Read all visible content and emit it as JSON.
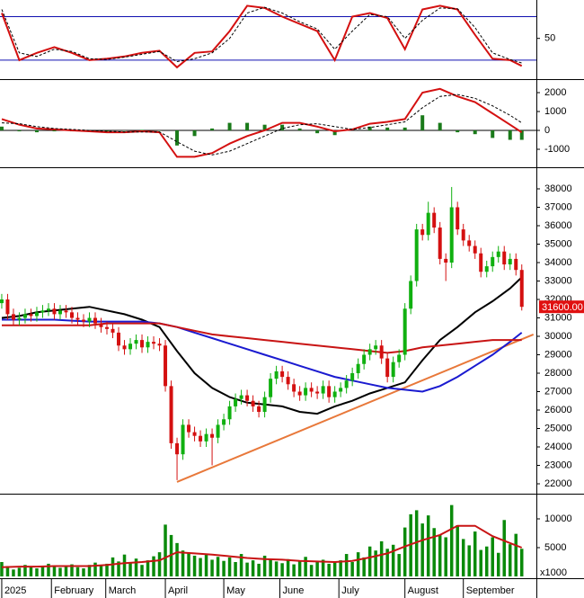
{
  "chart_data": [
    {
      "type": "line",
      "xlim": [
        -0.3,
        91.5
      ],
      "ylim": [
        -5,
        103
      ],
      "yticks": [
        50
      ],
      "levels": [
        80,
        20
      ],
      "levels_color": "#1010b0",
      "x": [
        0,
        3,
        6,
        9,
        12,
        15,
        18,
        21,
        24,
        27,
        30,
        33,
        36,
        39,
        42,
        45,
        48,
        51,
        54,
        57,
        60,
        63,
        66,
        69,
        72,
        75,
        78,
        81,
        84,
        87,
        89
      ],
      "series": [
        {
          "color": "#d41010",
          "values": [
            85,
            20,
            30,
            38,
            30,
            20,
            22,
            25,
            30,
            33,
            10,
            30,
            32,
            60,
            95,
            92,
            80,
            70,
            60,
            20,
            80,
            85,
            78,
            35,
            90,
            95,
            90,
            55,
            22,
            20,
            12
          ]
        },
        {
          "color": "#000000",
          "dashed": true,
          "values": [
            90,
            30,
            25,
            35,
            32,
            22,
            21,
            24,
            28,
            32,
            18,
            22,
            30,
            50,
            85,
            93,
            85,
            73,
            63,
            35,
            60,
            83,
            80,
            50,
            75,
            92,
            91,
            65,
            30,
            21,
            16
          ]
        }
      ]
    },
    {
      "type": "macd",
      "xlim": [
        -0.3,
        91.5
      ],
      "ylim": [
        -1905,
        2619
      ],
      "yticks": [
        2000,
        1000,
        0,
        -1000
      ],
      "x": [
        0,
        3,
        6,
        9,
        12,
        15,
        18,
        21,
        24,
        27,
        30,
        33,
        36,
        39,
        42,
        45,
        48,
        51,
        54,
        57,
        60,
        63,
        66,
        69,
        72,
        75,
        78,
        81,
        84,
        87,
        89
      ],
      "series": [
        {
          "color": "#d41010",
          "values": [
            600,
            300,
            100,
            50,
            0,
            -50,
            -100,
            -100,
            -50,
            -100,
            -1400,
            -1400,
            -1200,
            -700,
            -300,
            0,
            400,
            400,
            200,
            -50,
            50,
            350,
            450,
            600,
            2000,
            2200,
            1800,
            1500,
            900,
            300,
            -100
          ]
        },
        {
          "color": "#000000",
          "dashed": true,
          "values": [
            400,
            350,
            200,
            100,
            50,
            0,
            -50,
            -80,
            -80,
            -80,
            -600,
            -1100,
            -1300,
            -1100,
            -700,
            -300,
            100,
            300,
            350,
            200,
            50,
            150,
            300,
            450,
            1200,
            1800,
            1900,
            1700,
            1300,
            800,
            400
          ]
        }
      ],
      "histogram": {
        "color": "#1a7a1a",
        "values": [
          200,
          -50,
          -100,
          -50,
          -50,
          -50,
          -50,
          -20,
          30,
          -20,
          -800,
          -300,
          100,
          400,
          400,
          300,
          300,
          100,
          -150,
          -250,
          0,
          200,
          150,
          150,
          800,
          400,
          -100,
          -200,
          -400,
          -500,
          -500
        ]
      }
    },
    {
      "type": "candlestick",
      "xlim": [
        -0.3,
        91.5
      ],
      "ylim": [
        21512,
        39073
      ],
      "yticks": [
        22000,
        23000,
        24000,
        25000,
        26000,
        27000,
        28000,
        29000,
        30000,
        31000,
        32000,
        33000,
        34000,
        35000,
        36000,
        37000,
        38000
      ],
      "up_color": "#10b010",
      "down_color": "#d41010",
      "open": [
        31800,
        32000,
        31200,
        30900,
        31000,
        31200,
        31100,
        31300,
        31400,
        31500,
        31200,
        31400,
        31300,
        31000,
        30900,
        30800,
        31000,
        30700,
        30500,
        30400,
        30200,
        29500,
        29300,
        29600,
        29800,
        29400,
        29700,
        29600,
        29500,
        27300,
        24200,
        23600,
        25200,
        24800,
        24600,
        24300,
        24700,
        24500,
        25200,
        25500,
        26200,
        26600,
        26800,
        26500,
        26200,
        25900,
        26700,
        27700,
        28100,
        27800,
        27400,
        27000,
        26800,
        27200,
        27000,
        26900,
        27300,
        26700,
        27000,
        27200,
        27600,
        28000,
        28500,
        29000,
        29300,
        29500,
        28800,
        27800,
        28600,
        29000,
        31500,
        33000,
        35800,
        35500,
        36700,
        35900,
        34200,
        34000,
        37000,
        35800,
        35200,
        34900,
        34500,
        33500,
        33800,
        34300,
        34600,
        33900,
        34200,
        33600
      ],
      "high": [
        32300,
        32300,
        31500,
        31300,
        31500,
        31500,
        31600,
        31700,
        31800,
        31800,
        31700,
        31700,
        31600,
        31300,
        31200,
        31300,
        31300,
        31000,
        30800,
        30700,
        30500,
        29800,
        29900,
        30100,
        30100,
        30000,
        30000,
        29900,
        29800,
        27600,
        24500,
        25500,
        25500,
        25100,
        24900,
        25000,
        25000,
        25500,
        25800,
        26500,
        26900,
        27100,
        27100,
        26800,
        26500,
        27000,
        28000,
        28400,
        28400,
        28100,
        27700,
        27300,
        27500,
        27500,
        27300,
        27600,
        27600,
        27300,
        27500,
        27900,
        28300,
        28800,
        29300,
        29600,
        29800,
        29800,
        29100,
        28900,
        29300,
        31800,
        33300,
        36100,
        36100,
        37300,
        37000,
        36200,
        34500,
        38100,
        37300,
        36100,
        35500,
        35200,
        34800,
        34100,
        34600,
        34900,
        34900,
        34500,
        34500,
        33900
      ],
      "low": [
        31500,
        30900,
        30600,
        30600,
        30700,
        30800,
        30800,
        31000,
        31100,
        30900,
        30900,
        31000,
        30700,
        30600,
        30500,
        30500,
        30400,
        30200,
        30100,
        29900,
        29200,
        29000,
        29000,
        29300,
        29100,
        29100,
        29300,
        29200,
        27000,
        23900,
        22200,
        23300,
        24500,
        24300,
        24000,
        24000,
        23000,
        24200,
        24900,
        25200,
        25900,
        26300,
        26200,
        25900,
        25600,
        25600,
        26400,
        27400,
        27500,
        27100,
        26700,
        26500,
        26500,
        26700,
        26600,
        26600,
        26400,
        26400,
        26700,
        26900,
        27300,
        27700,
        28200,
        28700,
        29000,
        28500,
        27500,
        27500,
        28300,
        28700,
        31200,
        32700,
        35200,
        35200,
        35600,
        33900,
        33000,
        33700,
        35500,
        34900,
        34600,
        34200,
        33200,
        33200,
        33500,
        34000,
        33600,
        33600,
        33300,
        31400
      ],
      "close": [
        32000,
        31200,
        30900,
        31000,
        31200,
        31100,
        31300,
        31400,
        31500,
        31200,
        31400,
        31300,
        31000,
        30900,
        30800,
        31000,
        30700,
        30500,
        30400,
        30200,
        29500,
        29300,
        29600,
        29800,
        29400,
        29700,
        29600,
        29500,
        27300,
        24200,
        23600,
        25200,
        24800,
        24600,
        24300,
        24700,
        24500,
        25200,
        25500,
        26200,
        26600,
        26800,
        26500,
        26200,
        25900,
        26700,
        27700,
        28100,
        27800,
        27400,
        27000,
        26800,
        27200,
        27000,
        26900,
        27300,
        26700,
        27000,
        27200,
        27600,
        28000,
        28500,
        29000,
        29300,
        29500,
        28800,
        27800,
        28600,
        29000,
        31500,
        33000,
        35800,
        35500,
        36700,
        35900,
        34200,
        34000,
        37000,
        35800,
        35200,
        34900,
        34500,
        33500,
        33800,
        34300,
        34600,
        33900,
        34200,
        33600,
        31600
      ],
      "last_price": {
        "value": 31600,
        "label": "31600.00"
      },
      "last_price_color": "#e01010",
      "lines": {
        "x": [
          0,
          3,
          6,
          9,
          12,
          15,
          18,
          21,
          24,
          27,
          30,
          33,
          36,
          39,
          42,
          45,
          48,
          51,
          54,
          57,
          60,
          63,
          66,
          69,
          72,
          75,
          78,
          81,
          84,
          87,
          89
        ],
        "series": [
          {
            "color": "#000000",
            "values": [
              31000,
              31100,
              31300,
              31400,
              31500,
              31600,
              31400,
              31200,
              30900,
              30500,
              29200,
              28000,
              27200,
              26700,
              26400,
              26300,
              26200,
              25900,
              25800,
              26200,
              26500,
              26900,
              27200,
              27500,
              28700,
              29800,
              30500,
              31300,
              31900,
              32600,
              33200
            ]
          },
          {
            "color": "#1a1ad0",
            "values": [
              30900,
              30900,
              30900,
              30900,
              30850,
              30800,
              30800,
              30800,
              30800,
              30700,
              30500,
              30200,
              29900,
              29600,
              29300,
              29000,
              28700,
              28400,
              28100,
              27800,
              27600,
              27400,
              27200,
              27100,
              27000,
              27300,
              27800,
              28400,
              29000,
              29700,
              30200
            ]
          },
          {
            "color": "#c81414",
            "values": [
              30600,
              30600,
              30600,
              30600,
              30600,
              30600,
              30700,
              30700,
              30700,
              30700,
              30500,
              30300,
              30100,
              30000,
              29900,
              29800,
              29700,
              29600,
              29500,
              29400,
              29300,
              29200,
              29100,
              29200,
              29400,
              29500,
              29600,
              29700,
              29800,
              29800,
              29800
            ]
          }
        ]
      },
      "trend_line": {
        "color": "#e8783a",
        "x": [
          30,
          91
        ],
        "values": [
          22100,
          30100
        ]
      }
    },
    {
      "type": "bar",
      "xlim": [
        -0.3,
        91.5
      ],
      "ylim": [
        0,
        14062
      ],
      "yticks": [
        5000,
        10000
      ],
      "unit_label": "x1000",
      "color": "#0a8a0a",
      "values": [
        2500,
        1800,
        1200,
        1500,
        2000,
        1600,
        1400,
        1800,
        2200,
        1700,
        1500,
        1900,
        2100,
        1600,
        1400,
        2000,
        2400,
        1800,
        2200,
        3300,
        2600,
        3800,
        2400,
        3100,
        2000,
        2800,
        3500,
        4200,
        9000,
        7200,
        5800,
        4500,
        4000,
        3600,
        3200,
        3800,
        2900,
        3400,
        2700,
        3300,
        2500,
        3900,
        2400,
        2800,
        2200,
        3600,
        3100,
        2600,
        2300,
        3000,
        2100,
        2700,
        3400,
        2000,
        2600,
        2900,
        2200,
        2400,
        2800,
        3900,
        2500,
        4200,
        3300,
        5200,
        4500,
        6100,
        4800,
        5500,
        3900,
        8500,
        10800,
        11500,
        9200,
        10600,
        8400,
        7200,
        6800,
        12400,
        8900,
        6500,
        5400,
        7800,
        4600,
        5200,
        6800,
        4100,
        9800,
        5600,
        7400,
        4800
      ],
      "ma": {
        "color": "#c81414",
        "x": [
          0,
          3,
          6,
          9,
          12,
          15,
          18,
          21,
          24,
          27,
          30,
          33,
          36,
          39,
          42,
          45,
          48,
          51,
          54,
          57,
          60,
          63,
          66,
          69,
          72,
          75,
          78,
          81,
          84,
          87,
          89
        ],
        "values": [
          1600,
          1700,
          1700,
          1800,
          1800,
          1800,
          2000,
          2300,
          2500,
          2800,
          4200,
          4000,
          3800,
          3500,
          3200,
          3000,
          2900,
          2700,
          2600,
          2500,
          2700,
          3300,
          4000,
          5200,
          6300,
          7200,
          8800,
          8800,
          7000,
          5800,
          5000
        ]
      },
      "xticks": [
        {
          "value": 0,
          "label": "2025"
        },
        {
          "value": 8.5,
          "label": "February"
        },
        {
          "value": 17.8,
          "label": "March"
        },
        {
          "value": 28,
          "label": "April"
        },
        {
          "value": 38,
          "label": "May"
        },
        {
          "value": 47.6,
          "label": "June"
        },
        {
          "value": 57.7,
          "label": "July"
        },
        {
          "value": 69,
          "label": "August"
        },
        {
          "value": 79,
          "label": "September"
        }
      ]
    }
  ]
}
